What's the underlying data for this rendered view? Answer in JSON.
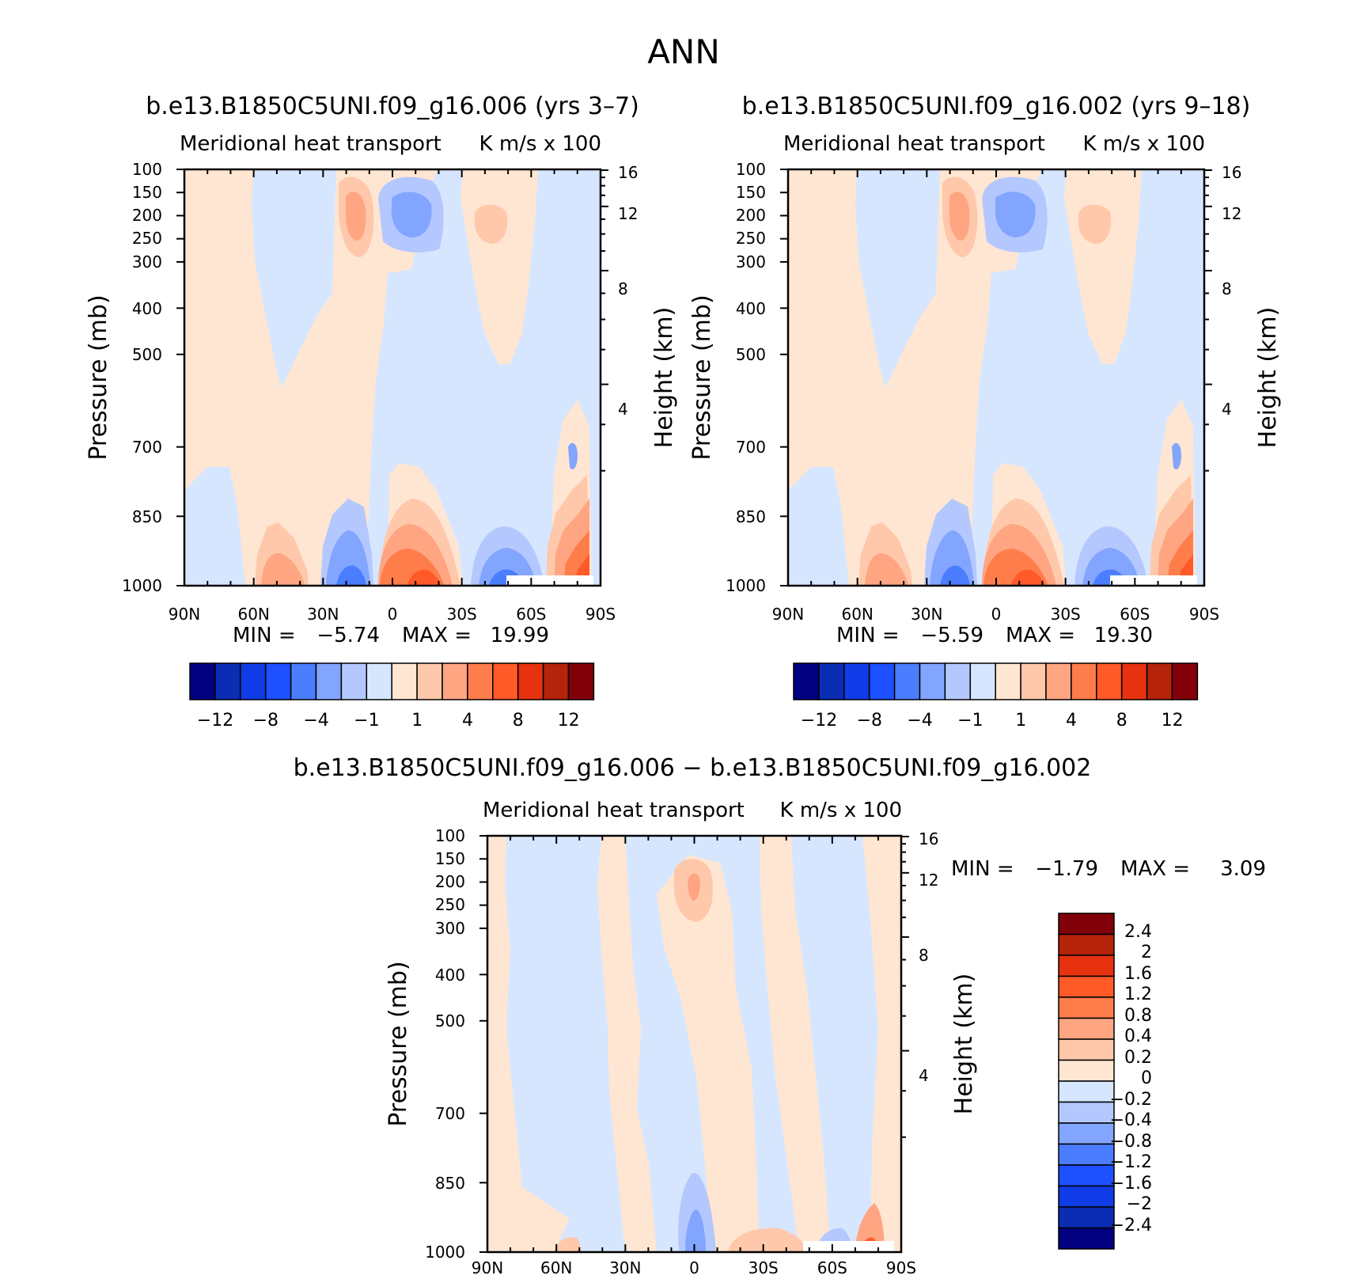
{
  "title": "ANN",
  "colors": {
    "neg": [
      "#000080",
      "#0a2db4",
      "#0f3ce6",
      "#1e50ff",
      "#4b7dff",
      "#82a5ff",
      "#b4c8ff",
      "#d7e6ff"
    ],
    "pos": [
      "#ffe6d2",
      "#ffc8aa",
      "#ffa582",
      "#ff7d4b",
      "#ff5a28",
      "#e6320f",
      "#b4230a",
      "#82000a"
    ]
  },
  "chart_data": [
    {
      "type": "heatmap",
      "case_title": "b.e13.B1850C5UNI.f09_g16.006 (yrs 3–7)",
      "field_label": "Meridional heat transport",
      "units_label": "K m/s x 100",
      "ylabel": "Pressure (mb)",
      "ylabel_right": "Height (km)",
      "x_ticks": [
        "90N",
        "60N",
        "30N",
        "0",
        "30S",
        "60S",
        "90S"
      ],
      "y_ticks": [
        "100",
        "150",
        "200",
        "250",
        "300",
        "400",
        "500",
        "700",
        "850",
        "1000"
      ],
      "y_ticks_right": [
        "16",
        "12",
        "8",
        "4"
      ],
      "min_label": "MIN =",
      "min_value": "−5.74",
      "max_label": "MAX =",
      "max_value": "19.99",
      "colorbar_labels": [
        "−12",
        "−8",
        "−4",
        "−1",
        "1",
        "4",
        "8",
        "12"
      ]
    },
    {
      "type": "heatmap",
      "case_title": "b.e13.B1850C5UNI.f09_g16.002 (yrs 9–18)",
      "field_label": "Meridional heat transport",
      "units_label": "K m/s x 100",
      "ylabel": "Pressure (mb)",
      "ylabel_right": "Height (km)",
      "x_ticks": [
        "90N",
        "60N",
        "30N",
        "0",
        "30S",
        "60S",
        "90S"
      ],
      "y_ticks": [
        "100",
        "150",
        "200",
        "250",
        "300",
        "400",
        "500",
        "700",
        "850",
        "1000"
      ],
      "y_ticks_right": [
        "16",
        "12",
        "8",
        "4"
      ],
      "min_label": "MIN =",
      "min_value": "−5.59",
      "max_label": "MAX =",
      "max_value": "19.30",
      "colorbar_labels": [
        "−12",
        "−8",
        "−4",
        "−1",
        "1",
        "4",
        "8",
        "12"
      ]
    },
    {
      "type": "heatmap",
      "case_title": "b.e13.B1850C5UNI.f09_g16.006 − b.e13.B1850C5UNI.f09_g16.002",
      "field_label": "Meridional heat transport",
      "units_label": "K m/s x 100",
      "ylabel": "Pressure (mb)",
      "ylabel_right": "Height (km)",
      "x_ticks": [
        "90N",
        "60N",
        "30N",
        "0",
        "30S",
        "60S",
        "90S"
      ],
      "y_ticks": [
        "100",
        "150",
        "200",
        "250",
        "300",
        "400",
        "500",
        "700",
        "850",
        "1000"
      ],
      "y_ticks_right": [
        "16",
        "12",
        "8",
        "4"
      ],
      "min_label": "MIN =",
      "min_value": "−1.79",
      "max_label": "MAX =",
      "max_value": "3.09",
      "colorbar_labels": [
        "2.4",
        "2",
        "1.6",
        "1.2",
        "0.8",
        "0.4",
        "0.2",
        "0",
        "−0.2",
        "−0.4",
        "−0.8",
        "−1.2",
        "−1.6",
        "−2",
        "−2.4"
      ]
    }
  ]
}
